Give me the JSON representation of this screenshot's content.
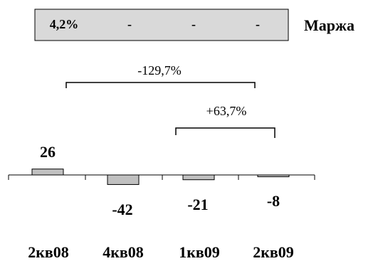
{
  "chart_data": {
    "type": "bar",
    "categories": [
      "2кв08",
      "4кв08",
      "1кв09",
      "2кв09"
    ],
    "values": [
      26,
      -42,
      -21,
      -8
    ],
    "data_labels": [
      "26",
      "-42",
      "-21",
      "-8"
    ],
    "ylim": [
      -50,
      30
    ],
    "grid": false,
    "margin_row": {
      "label": "Маржа",
      "values": [
        "4,2%",
        "-",
        "-",
        "-"
      ]
    },
    "annotations": [
      {
        "from": "2кв08",
        "to": "2кв09",
        "text": "-129,7%"
      },
      {
        "from": "1кв09",
        "to": "2кв09",
        "text": "+63,7%"
      }
    ],
    "colors": {
      "bar_fill": "#c0c0c0",
      "bar_stroke": "#000000",
      "margin_box_fill": "#d9d9d9"
    }
  }
}
